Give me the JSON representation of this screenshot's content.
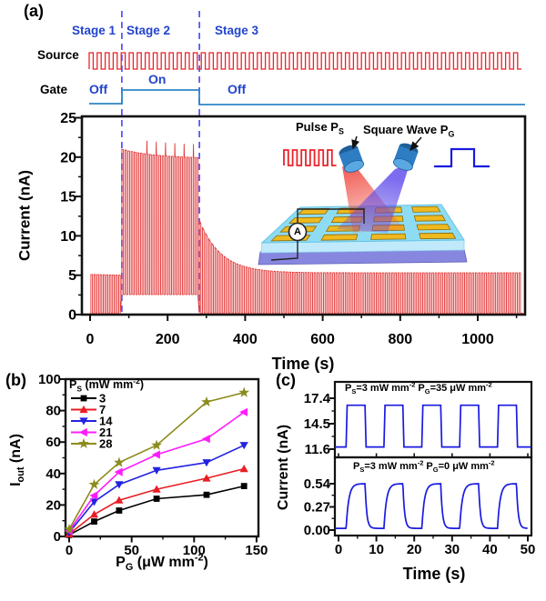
{
  "colors": {
    "stage_text": "#2244cc",
    "gate_line": "#2f86c8",
    "dashed_line": "#4444ff",
    "source_wave": "#e8232a",
    "trace_a": "#e23333",
    "trace_c": "#1a1ae0",
    "frame": "#111111"
  },
  "panel_a": {
    "label": "(a)",
    "stage_labels": [
      "Stage 1",
      "Stage 2",
      "Stage 3"
    ],
    "source_label": "Source",
    "gate_label": "Gate",
    "gate_off1": "Off",
    "gate_on": "On",
    "gate_off2": "Off",
    "inset": {
      "pulse_label": "Pulse P_{S}",
      "square_label": "Square Wave P_{G}",
      "ammeter_label": "A"
    }
  },
  "panel_b": {
    "label": "(b)"
  },
  "panel_c": {
    "label": "(c)"
  },
  "chart_data": [
    {
      "id": "a",
      "type": "line",
      "xlabel": "Time (s)",
      "ylabel": "Current (nA)",
      "xlim": [
        -20,
        1122
      ],
      "ylim": [
        0,
        25.2
      ],
      "xticks": [
        "0",
        "200",
        "400",
        "600",
        "800",
        "1000"
      ],
      "xminor_step": 100,
      "yticks": [
        "0",
        "5",
        "10",
        "15",
        "20",
        "25"
      ],
      "yminor_step": 2.5,
      "pulse_period_s": 8,
      "pulse_on_s": 4,
      "stage_boundaries_s": [
        82,
        282
      ],
      "segments": [
        {
          "stage": "1",
          "t_start": 0,
          "t_end": 82,
          "baseline_nA": 0.2,
          "peak_start_nA": 5.1,
          "peak_end_nA": 5.0
        },
        {
          "stage": "2",
          "t_start": 82,
          "t_end": 282,
          "baseline_nA": 2.55,
          "peak_start_nA": 21.0,
          "peak_end_nA": 19.8,
          "decay_tau_s": 90,
          "overshoot_spike_nA": 1.7
        },
        {
          "stage": "3",
          "t_start": 282,
          "t_end": 1117,
          "baseline_nA": 0.2,
          "peak_start_nA": 12.0,
          "peak_end_nA": 5.3,
          "decay_tau_s": 55
        }
      ]
    },
    {
      "id": "b",
      "type": "scatter-line",
      "xlabel": "P_{G} (μW mm^{-2})",
      "ylabel": "I_{out} (nA)",
      "legend_title": "P_{S} (mW mm^{-2})",
      "xlim": [
        -8,
        156
      ],
      "ylim": [
        -4,
        100
      ],
      "xticks": [
        "0",
        "50",
        "100",
        "150"
      ],
      "xminor_step": 25,
      "yticks": [
        "0",
        "20",
        "40",
        "60",
        "80",
        "100"
      ],
      "yminor_step": 10,
      "x": [
        0,
        20,
        40,
        70,
        110,
        140
      ],
      "series": [
        {
          "name": "3",
          "color": "#000000",
          "marker": "square",
          "values": [
            1,
            9.5,
            16.5,
            24,
            26.5,
            32
          ]
        },
        {
          "name": "7",
          "color": "#e81e24",
          "marker": "triangle-up",
          "values": [
            1.5,
            14,
            23,
            30,
            37,
            43
          ]
        },
        {
          "name": "14",
          "color": "#2222e0",
          "marker": "triangle-down",
          "values": [
            2.5,
            22,
            33,
            42,
            47,
            58
          ]
        },
        {
          "name": "21",
          "color": "#ff1cff",
          "marker": "triangle-left",
          "values": [
            3.5,
            26,
            41,
            52,
            62,
            79
          ]
        },
        {
          "name": "28",
          "color": "#8c8c1e",
          "marker": "star",
          "values": [
            4.5,
            33,
            47,
            58,
            85.5,
            91.5
          ]
        }
      ]
    },
    {
      "id": "c_top",
      "type": "line",
      "annotation": "P_{S}=3 mW mm^{-2} P_{G}=35 μW mm^{-2}",
      "yticks": [
        "11.6",
        "14.5",
        "17.4"
      ],
      "yminors": [
        13.05,
        15.95
      ],
      "wave": {
        "low_nA": 11.85,
        "high_nA": 16.6,
        "rise_t": [
          2,
          12,
          22,
          32,
          42
        ],
        "fall_t": [
          7,
          17,
          27,
          37,
          47
        ],
        "edge": "sharp"
      }
    },
    {
      "id": "c_bottom",
      "type": "line",
      "annotation": "P_{S}=3 mW mm^{-2} P_{G}=0 μW mm^{-2}",
      "xlabel": "Time (s)",
      "ylabel": "Current (nA)",
      "xticks": [
        "0",
        "10",
        "20",
        "30",
        "40",
        "50"
      ],
      "xminor_step": 5,
      "yticks": [
        "0.00",
        "0.27",
        "0.54"
      ],
      "yminors": [
        0.135,
        0.405
      ],
      "wave": {
        "low_nA": 0.02,
        "high_nA": 0.54,
        "rise_t": [
          2,
          12,
          22,
          32,
          42
        ],
        "fall_t": [
          7,
          17,
          27,
          37,
          47
        ],
        "edge": "exponential",
        "rise_tau_s": 0.7,
        "fall_tau_s": 0.45
      }
    }
  ]
}
